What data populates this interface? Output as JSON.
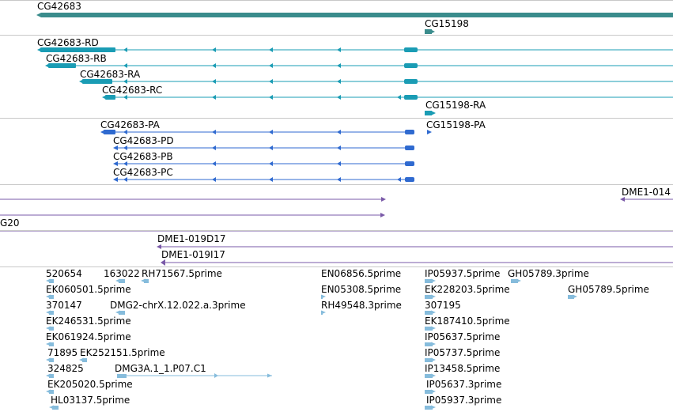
{
  "colors": {
    "gene": "#3a8c8c",
    "mrna": "#1a9cb4",
    "protein": "#2f6ad0",
    "clone": "#7a5aa8",
    "est": "#86bcdc",
    "separator": "#c8c8c8"
  },
  "tracks": {
    "genes": [
      {
        "label": "CG42683",
        "strand": "-"
      },
      {
        "label": "CG15198",
        "strand": "+"
      }
    ],
    "transcripts": [
      {
        "label": "CG42683-RD",
        "strand": "-"
      },
      {
        "label": "CG42683-RB",
        "strand": "-"
      },
      {
        "label": "CG42683-RA",
        "strand": "-"
      },
      {
        "label": "CG42683-RC",
        "strand": "-"
      },
      {
        "label": "CG15198-RA",
        "strand": "+"
      }
    ],
    "proteins": [
      {
        "label": "CG42683-PA",
        "strand": "-"
      },
      {
        "label": "CG15198-PA",
        "strand": "+"
      },
      {
        "label": "CG42683-PD",
        "strand": "-"
      },
      {
        "label": "CG42683-PB",
        "strand": "-"
      },
      {
        "label": "CG42683-PC",
        "strand": "-"
      }
    ],
    "clones": [
      {
        "label": "DME1-014",
        "strand": "-"
      },
      {
        "label": "G20",
        "strand": "+"
      },
      {
        "label": "DME1-019D17",
        "strand": "-"
      },
      {
        "label": "DME1-019I17",
        "strand": "-"
      }
    ],
    "ests": [
      "520654",
      "163022",
      "RH71567.5prime",
      "EN06856.5prime",
      "IP05937.5prime",
      "GH05789.3prime",
      "EK060501.5prime",
      "EN05308.5prime",
      "EK228203.5prime",
      "GH05789.5prime",
      "370147",
      "DMG2-chrX.12.022.a.3prime",
      "RH49548.3prime",
      "307195",
      "EK246531.5prime",
      "EK187410.5prime",
      "EK061924.5prime",
      "IP05637.5prime",
      "71895",
      "EK252151.5prime",
      "IP05737.5prime",
      "324825",
      "DMG3A.1_1.P07.C1",
      "IP13458.5prime",
      "EK205020.5prime",
      "IP05637.3prime",
      "HL03137.5prime",
      "IP05937.3prime"
    ]
  }
}
